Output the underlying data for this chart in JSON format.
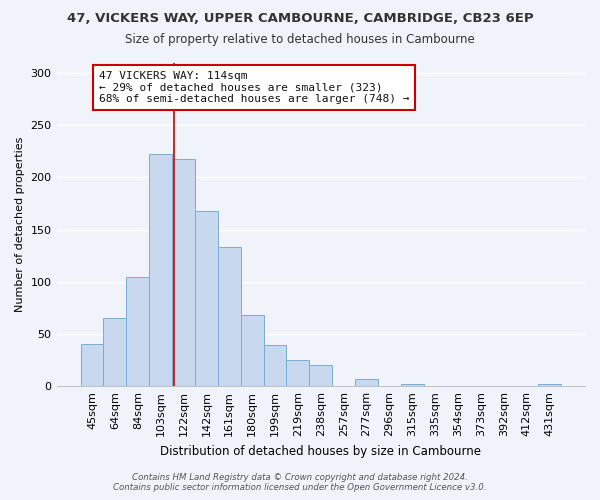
{
  "title1": "47, VICKERS WAY, UPPER CAMBOURNE, CAMBRIDGE, CB23 6EP",
  "title2": "Size of property relative to detached houses in Cambourne",
  "xlabel": "Distribution of detached houses by size in Cambourne",
  "ylabel": "Number of detached properties",
  "bar_labels": [
    "45sqm",
    "64sqm",
    "84sqm",
    "103sqm",
    "122sqm",
    "142sqm",
    "161sqm",
    "180sqm",
    "199sqm",
    "219sqm",
    "238sqm",
    "257sqm",
    "277sqm",
    "296sqm",
    "315sqm",
    "335sqm",
    "354sqm",
    "373sqm",
    "392sqm",
    "412sqm",
    "431sqm"
  ],
  "bar_values": [
    40,
    65,
    105,
    222,
    218,
    168,
    133,
    68,
    39,
    25,
    20,
    0,
    7,
    0,
    2,
    0,
    0,
    0,
    0,
    0,
    2
  ],
  "bar_color": "#c8d8ee",
  "bar_edge_color": "#7aadd4",
  "ylim": [
    0,
    310
  ],
  "yticks": [
    0,
    50,
    100,
    150,
    200,
    250,
    300
  ],
  "annotation_title": "47 VICKERS WAY: 114sqm",
  "annotation_line1": "← 29% of detached houses are smaller (323)",
  "annotation_line2": "68% of semi-detached houses are larger (748) →",
  "vline_color": "#cc0000",
  "vline_x": 3.58,
  "footer1": "Contains HM Land Registry data © Crown copyright and database right 2024.",
  "footer2": "Contains public sector information licensed under the Open Government Licence v3.0.",
  "background_color": "#f0f4fa",
  "grid_color": "#ffffff",
  "annotation_box_facecolor": "#ffffff",
  "annotation_box_edgecolor": "#cc0000"
}
